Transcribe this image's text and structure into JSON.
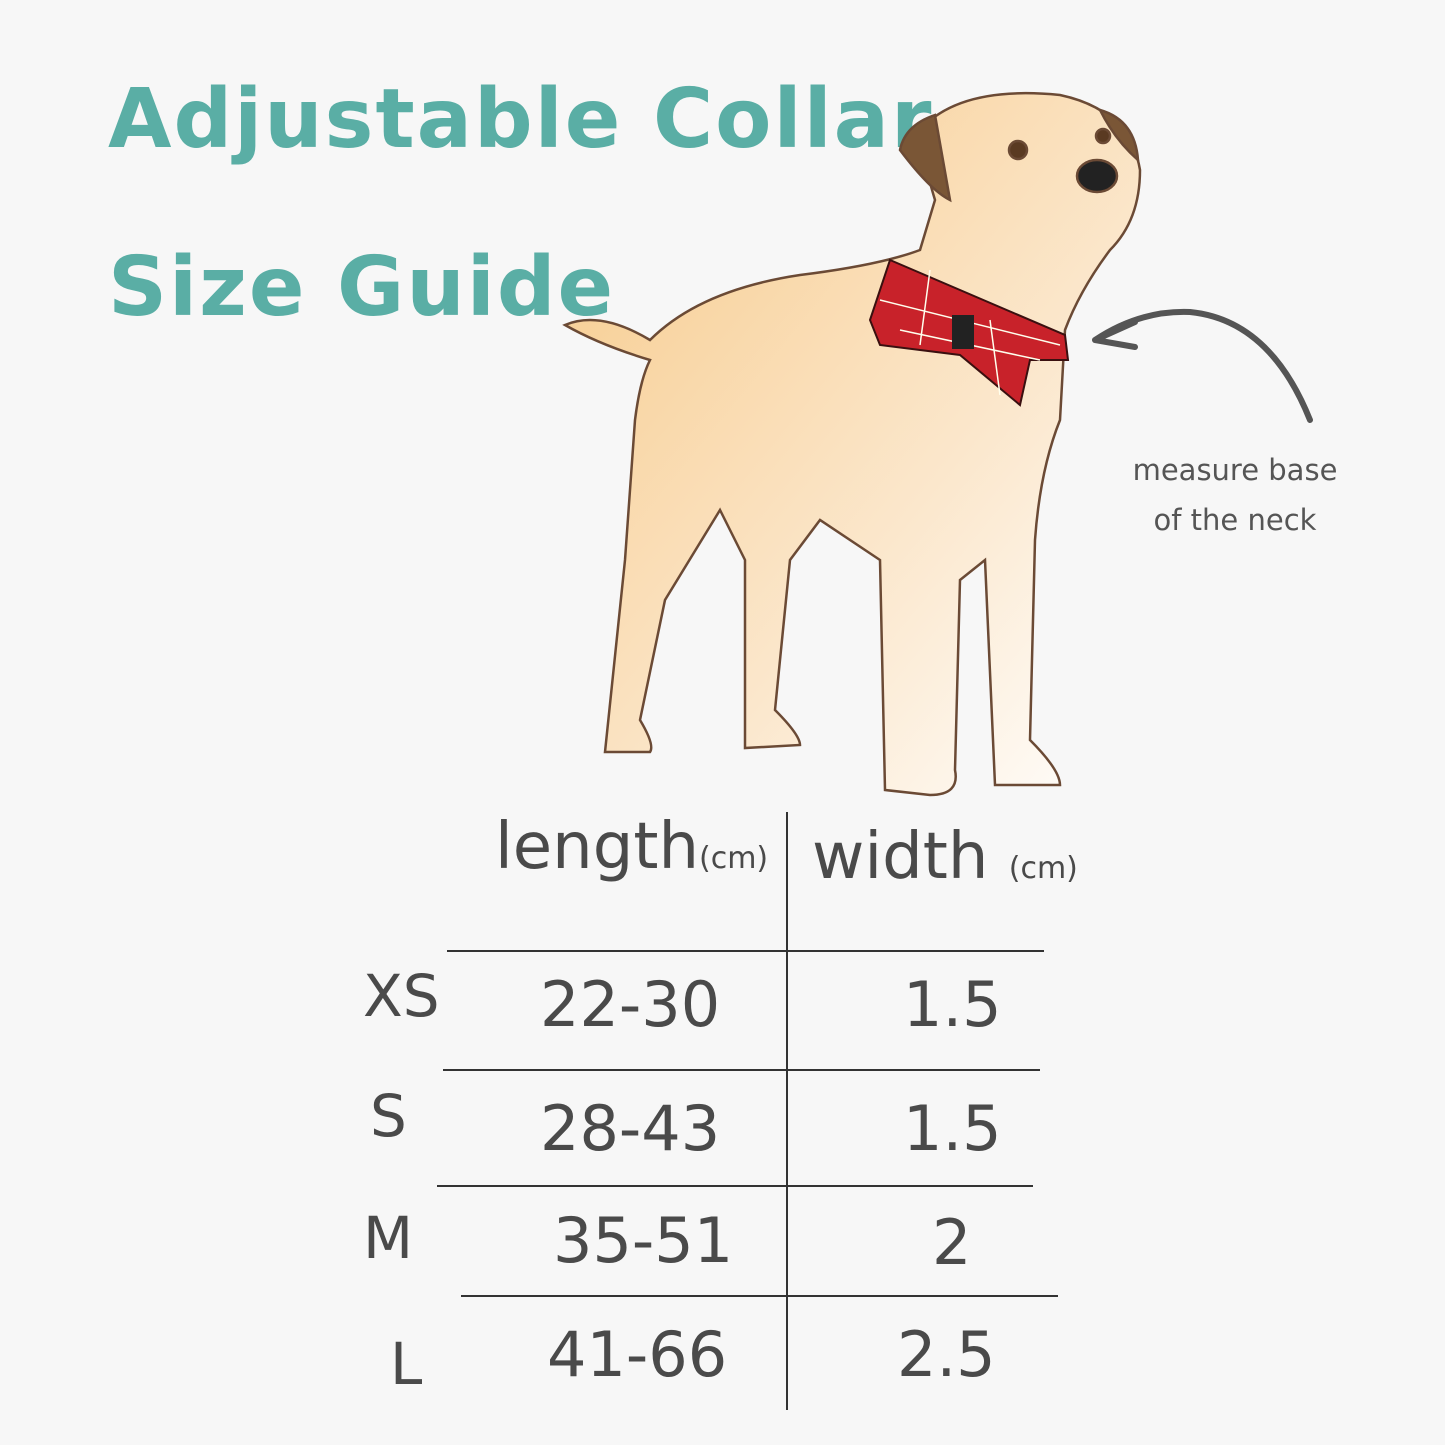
{
  "title": {
    "line1": "Adjustable Collar",
    "line2": "Size Guide",
    "color": "#5aaea5"
  },
  "annotation": {
    "line1": "measure base",
    "line2": "of the neck",
    "icon": "curved-arrow-icon"
  },
  "illustration": {
    "subject": "dog-with-red-tartan-bow-tie-collar"
  },
  "table": {
    "headers": [
      {
        "label": "length",
        "unit": "(cm)"
      },
      {
        "label": "width",
        "unit": "(cm)"
      }
    ],
    "rows": [
      {
        "size": "XS",
        "length": "22-30",
        "width": "1.5"
      },
      {
        "size": "S",
        "length": "28-43",
        "width": "1.5"
      },
      {
        "size": "M",
        "length": "35-51",
        "width": "2"
      },
      {
        "size": "L",
        "length": "41-66",
        "width": "2.5"
      }
    ]
  }
}
